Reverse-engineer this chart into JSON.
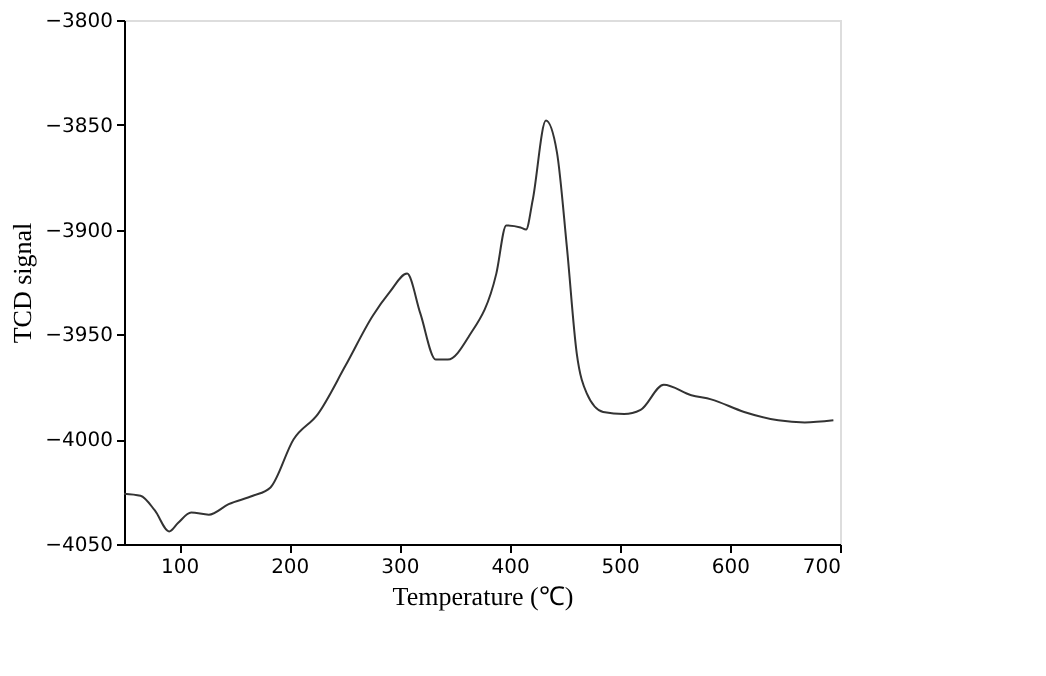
{
  "chart_data": {
    "type": "line",
    "xlabel": "Temperature (℃)",
    "ylabel": "TCD signal",
    "xlim": [
      50,
      700
    ],
    "xticks": [
      100,
      200,
      300,
      400,
      500,
      600,
      700
    ],
    "ylim": [
      -4050,
      -3800
    ],
    "yticks": [
      -4050,
      -4000,
      -3950,
      -3900,
      -3850,
      -3800
    ],
    "grid": false,
    "series": [
      {
        "color": "#333333",
        "x": [
          50,
          65,
          78,
          91,
          99,
          111,
          127,
          145,
          167,
          183,
          204,
          226,
          251,
          276,
          291,
          307,
          319,
          333,
          344,
          363,
          388,
          397,
          410,
          415,
          421,
          433,
          443,
          452,
          461,
          470,
          485,
          504,
          519,
          540,
          565,
          583,
          613,
          644,
          668,
          694
        ],
        "values": [
          -4026,
          -4027,
          -4034,
          -4044,
          -4040,
          -4035,
          -4036,
          -4031,
          -4027,
          -4023,
          -4000,
          -3988,
          -3965,
          -3941,
          -3930,
          -3921,
          -3940,
          -3962,
          -3962,
          -3951,
          -3921,
          -3898,
          -3899,
          -3900,
          -3886,
          -3848,
          -3863,
          -3908,
          -3959,
          -3978,
          -3987,
          -3988,
          -3986,
          -3974,
          -3979,
          -3981,
          -3987,
          -3991,
          -3992,
          -3991
        ]
      }
    ]
  }
}
